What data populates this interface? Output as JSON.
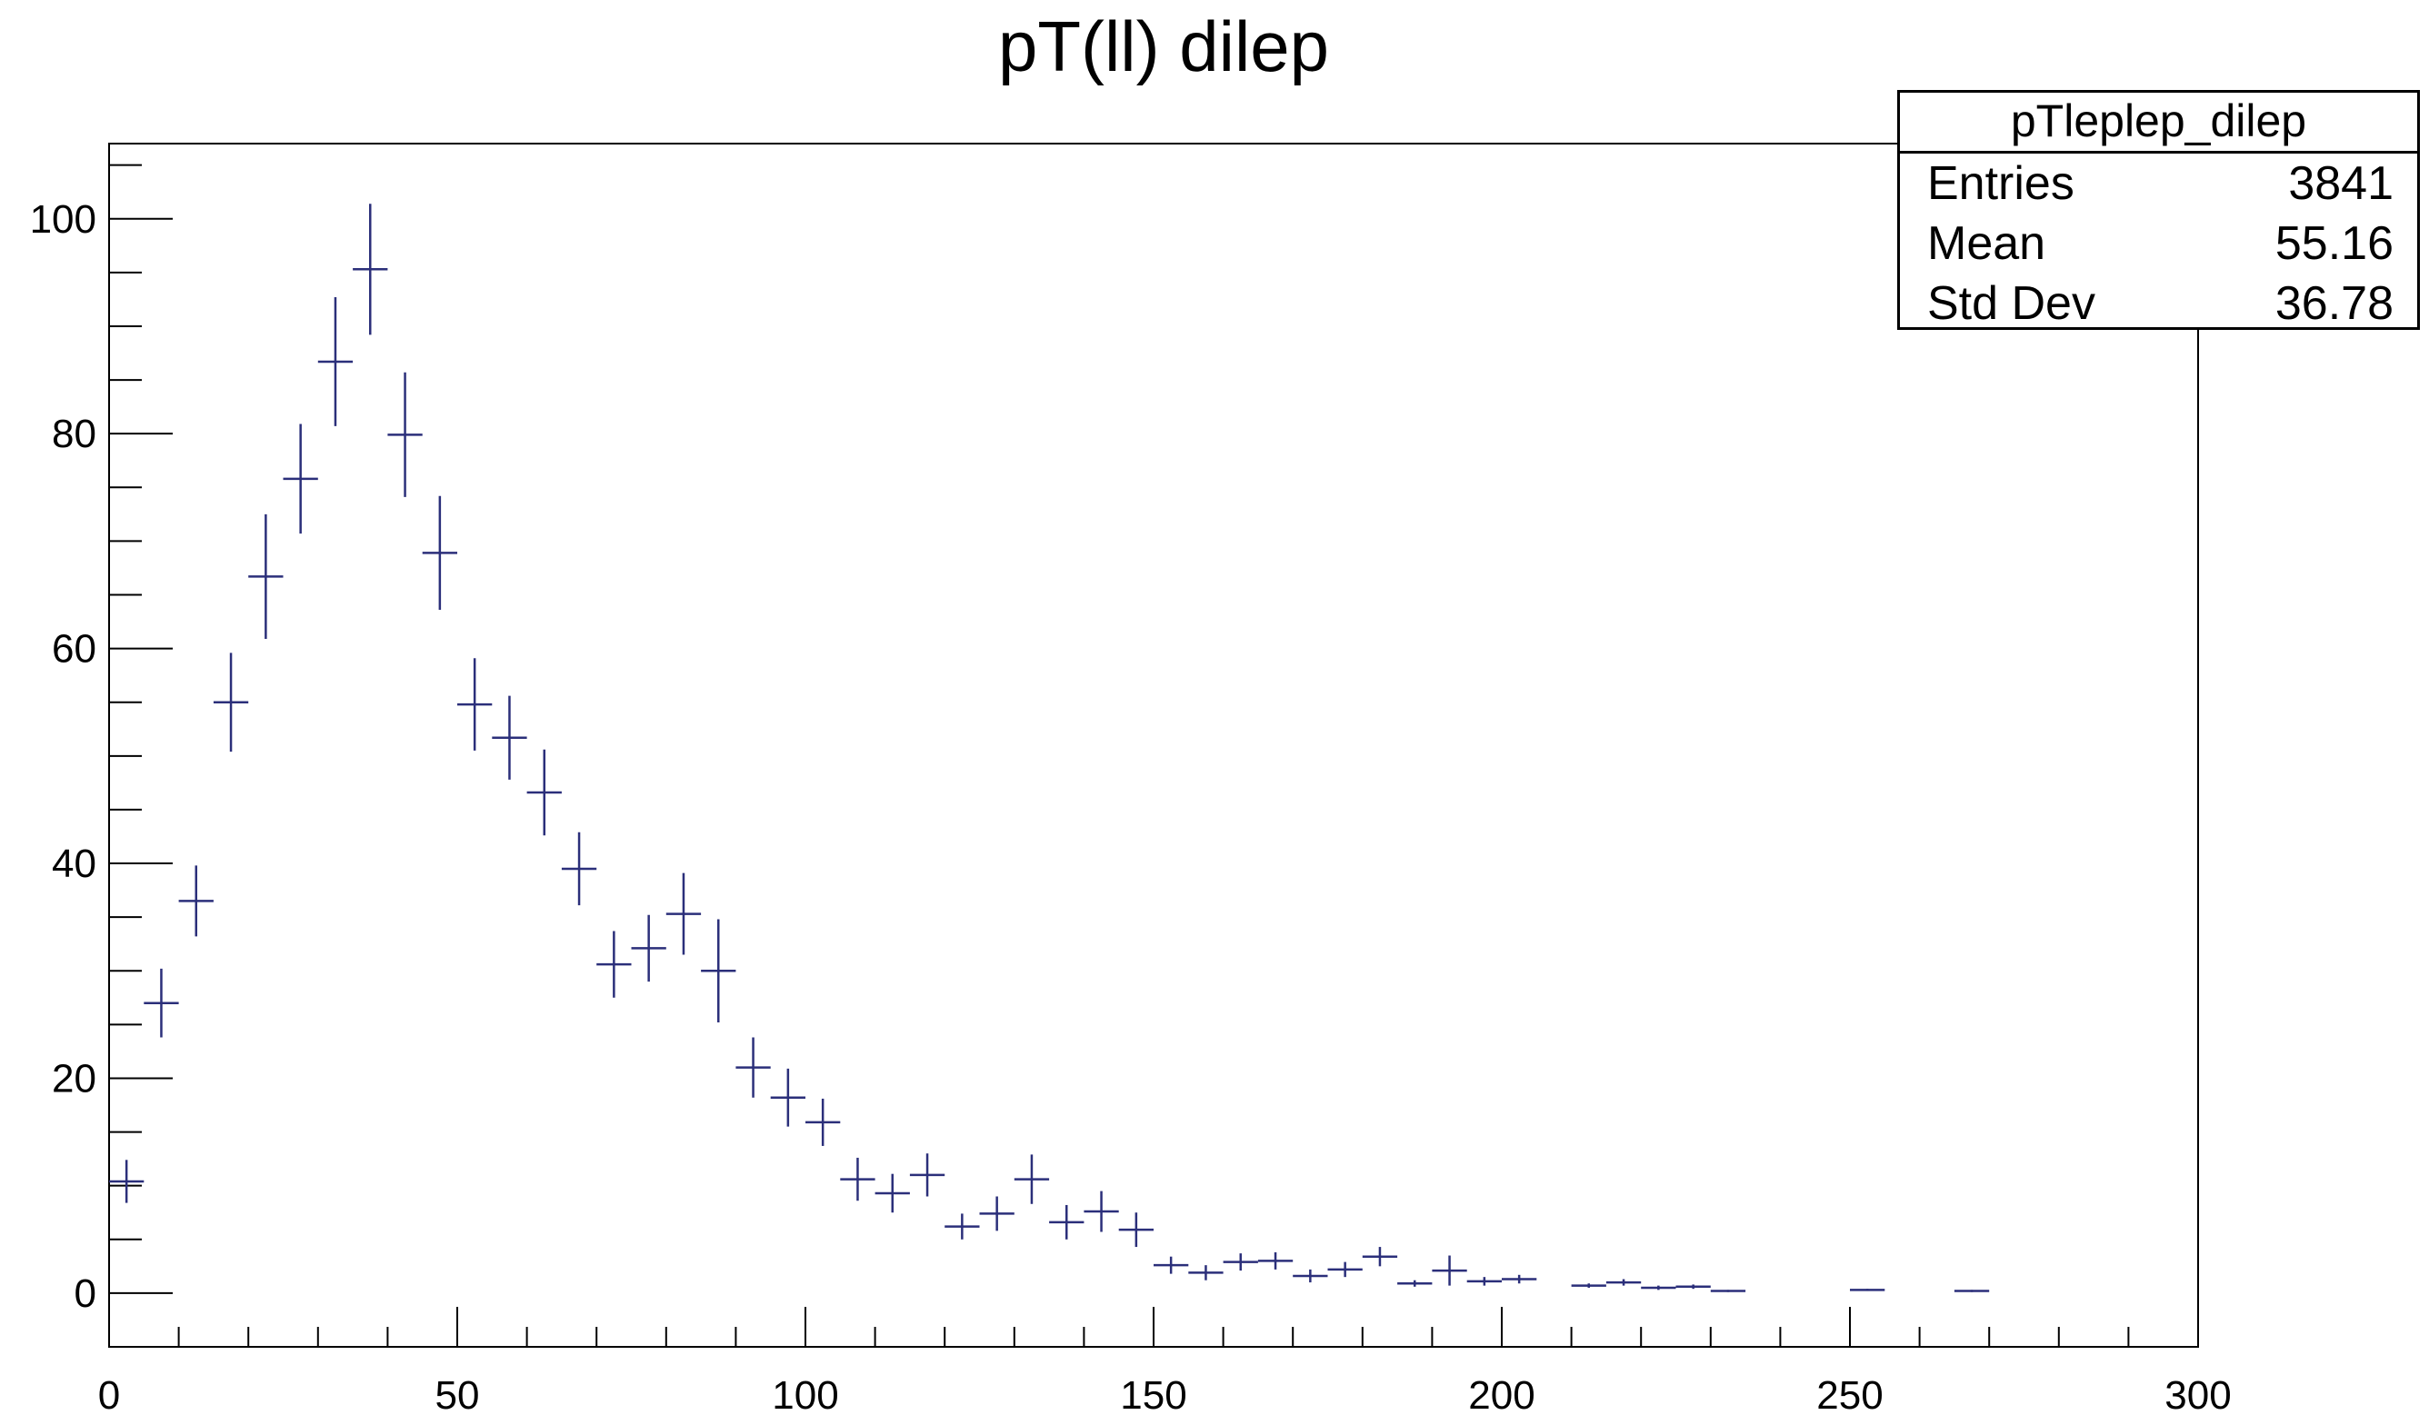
{
  "title": "pT(ll) dilep",
  "stats": {
    "name": "pTleplep_dilep",
    "rows": [
      {
        "label": "Entries",
        "value": "3841"
      },
      {
        "label": "Mean",
        "value": "55.16"
      },
      {
        "label": "Std Dev",
        "value": "36.78"
      }
    ]
  },
  "colors": {
    "marker": "#2b2f7a",
    "axis": "#000000"
  },
  "chart_data": {
    "type": "scatter",
    "title": "pT(ll) dilep",
    "xlabel": "",
    "ylabel": "",
    "xlim": [
      0,
      300
    ],
    "ylim": [
      -5,
      107
    ],
    "x_ticks": [
      0,
      50,
      100,
      150,
      200,
      250,
      300
    ],
    "y_ticks": [
      0,
      20,
      40,
      60,
      80,
      100
    ],
    "grid": false,
    "bin_width": 5,
    "series": [
      {
        "x": [
          2.5,
          7.5,
          12.5,
          17.5,
          22.5,
          27.5,
          32.5,
          37.5,
          42.5,
          47.5,
          52.5,
          57.5,
          62.5,
          67.5,
          72.5,
          77.5,
          82.5,
          87.5,
          92.5,
          97.5,
          102.5,
          107.5,
          112.5,
          117.5,
          122.5,
          127.5,
          132.5,
          137.5,
          142.5,
          147.5,
          152.5,
          157.5,
          162.5,
          167.5,
          172.5,
          177.5,
          182.5,
          187.5,
          192.5,
          197.5,
          202.5,
          212.5,
          217.5,
          222.5,
          227.5,
          232.5,
          252.5,
          267.5
        ],
        "y": [
          10.4,
          27.0,
          36.5,
          55.0,
          66.7,
          75.8,
          86.7,
          95.3,
          79.9,
          68.9,
          54.8,
          51.7,
          46.6,
          39.5,
          30.6,
          32.1,
          35.3,
          30.0,
          21.0,
          18.2,
          15.9,
          10.6,
          9.3,
          11.0,
          6.2,
          7.4,
          10.6,
          6.6,
          7.6,
          5.9,
          2.6,
          1.9,
          2.9,
          3.0,
          1.6,
          2.2,
          3.4,
          0.9,
          2.1,
          1.1,
          1.3,
          0.7,
          1.0,
          0.5,
          0.6,
          0.2,
          0.3,
          0.2
        ],
        "err": [
          2.0,
          3.2,
          3.3,
          4.6,
          5.8,
          5.1,
          6.0,
          6.1,
          5.8,
          5.3,
          4.3,
          3.9,
          4.0,
          3.4,
          3.1,
          3.1,
          3.8,
          4.8,
          2.8,
          2.7,
          2.2,
          2.0,
          1.8,
          2.0,
          1.2,
          1.6,
          2.3,
          1.6,
          1.9,
          1.6,
          0.8,
          0.7,
          0.8,
          0.8,
          0.6,
          0.7,
          0.9,
          0.3,
          1.4,
          0.4,
          0.4,
          0.2,
          0.3,
          0.2,
          0.2,
          0.1,
          0.1,
          0.1
        ]
      }
    ]
  }
}
